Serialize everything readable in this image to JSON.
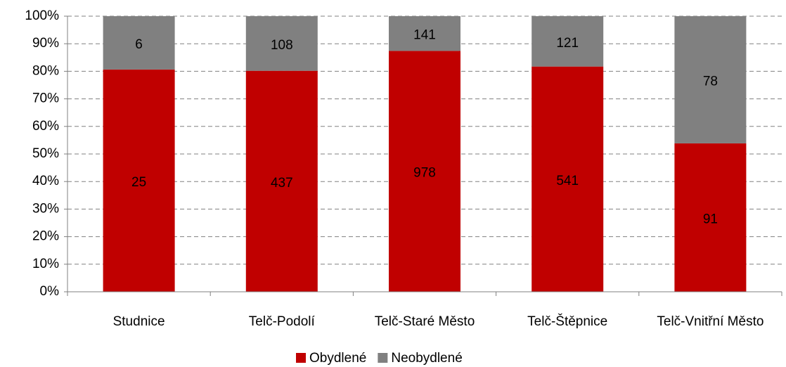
{
  "chart_data": {
    "type": "bar",
    "stacking": "percent",
    "categories": [
      "Studnice",
      "Telč-Podolí",
      "Telč-Staré Město",
      "Telč-Štěpnice",
      "Telč-Vnitřní Město"
    ],
    "series": [
      {
        "name": "Obydlené",
        "color": "#c00000",
        "values": [
          25,
          437,
          978,
          541,
          91
        ]
      },
      {
        "name": "Neobydlené",
        "color": "#808080",
        "values": [
          6,
          108,
          141,
          121,
          78
        ]
      }
    ],
    "ylim": [
      0,
      100
    ],
    "yticks": [
      {
        "value": 0,
        "label": "0%"
      },
      {
        "value": 10,
        "label": "10%"
      },
      {
        "value": 20,
        "label": "20%"
      },
      {
        "value": 30,
        "label": "30%"
      },
      {
        "value": 40,
        "label": "40%"
      },
      {
        "value": 50,
        "label": "50%"
      },
      {
        "value": 60,
        "label": "60%"
      },
      {
        "value": 70,
        "label": "70%"
      },
      {
        "value": 80,
        "label": "80%"
      },
      {
        "value": 90,
        "label": "90%"
      },
      {
        "value": 100,
        "label": "100%"
      }
    ],
    "grid": true,
    "legend": "bottom"
  }
}
